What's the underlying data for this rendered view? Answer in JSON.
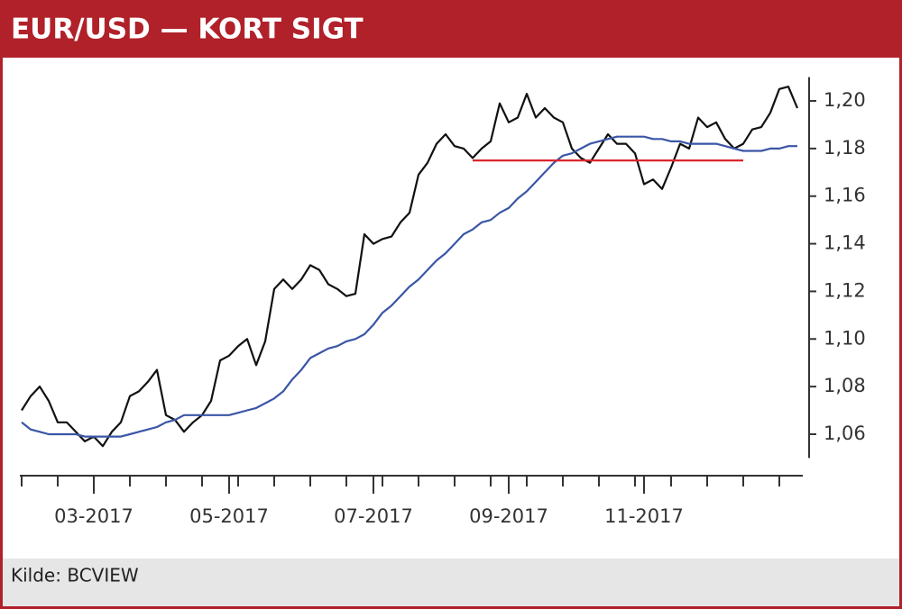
{
  "chart_data": {
    "type": "line",
    "title": "EUR/USD — KORT SIGT",
    "source": "Kilde: BCVIEW",
    "categories": [
      null,
      null,
      null,
      null,
      null,
      null,
      null,
      null,
      "03-2017",
      null,
      null,
      null,
      null,
      null,
      null,
      null,
      null,
      null,
      null,
      null,
      null,
      null,
      null,
      "05-2017",
      null,
      null,
      null,
      null,
      null,
      null,
      null,
      null,
      null,
      null,
      null,
      null,
      null,
      null,
      null,
      "07-2017",
      null,
      null,
      null,
      null,
      null,
      null,
      null,
      null,
      null,
      null,
      null,
      null,
      null,
      null,
      "09-2017",
      null,
      null,
      null,
      null,
      null,
      null,
      null,
      null,
      null,
      null,
      null,
      null,
      null,
      null,
      "11-2017",
      null,
      null,
      null,
      null,
      null,
      null,
      null,
      null,
      null,
      null,
      null,
      null,
      null,
      null,
      null,
      null,
      null
    ],
    "series": [
      {
        "color": "#111111",
        "values": [
          1.07,
          1.076,
          1.08,
          1.074,
          1.065,
          1.065,
          1.061,
          1.057,
          1.059,
          1.055,
          1.061,
          1.065,
          1.076,
          1.078,
          1.082,
          1.087,
          1.068,
          1.066,
          1.061,
          1.065,
          1.068,
          1.074,
          1.091,
          1.093,
          1.097,
          1.1,
          1.089,
          1.099,
          1.121,
          1.125,
          1.121,
          1.125,
          1.131,
          1.129,
          1.123,
          1.121,
          1.118,
          1.119,
          1.144,
          1.14,
          1.142,
          1.143,
          1.149,
          1.153,
          1.169,
          1.174,
          1.182,
          1.186,
          1.181,
          1.18,
          1.176,
          1.18,
          1.183,
          1.199,
          1.191,
          1.193,
          1.203,
          1.193,
          1.197,
          1.193,
          1.191,
          1.18,
          1.176,
          1.174,
          1.18,
          1.186,
          1.182,
          1.182,
          1.178,
          1.165,
          1.167,
          1.163,
          1.172,
          1.182,
          1.18,
          1.193,
          1.189,
          1.191,
          1.184,
          1.18,
          1.182,
          1.188,
          1.189,
          1.195,
          1.205,
          1.206,
          1.197
        ]
      },
      {
        "color": "#3a56a6",
        "values": [
          1.065,
          1.062,
          1.061,
          1.06,
          1.06,
          1.06,
          1.06,
          1.059,
          1.059,
          1.059,
          1.059,
          1.059,
          1.06,
          1.061,
          1.062,
          1.063,
          1.065,
          1.066,
          1.068,
          1.068,
          1.068,
          1.068,
          1.068,
          1.068,
          1.069,
          1.07,
          1.071,
          1.073,
          1.075,
          1.078,
          1.083,
          1.087,
          1.092,
          1.094,
          1.096,
          1.097,
          1.099,
          1.1,
          1.102,
          1.106,
          1.111,
          1.114,
          1.118,
          1.122,
          1.125,
          1.129,
          1.133,
          1.136,
          1.14,
          1.144,
          1.146,
          1.149,
          1.15,
          1.153,
          1.155,
          1.159,
          1.162,
          1.166,
          1.17,
          1.174,
          1.177,
          1.178,
          1.18,
          1.182,
          1.183,
          1.184,
          1.185,
          1.185,
          1.185,
          1.185,
          1.184,
          1.184,
          1.183,
          1.183,
          1.182,
          1.182,
          1.182,
          1.182,
          1.181,
          1.18,
          1.179,
          1.179,
          1.179,
          1.18,
          1.18,
          1.181,
          1.181
        ]
      },
      {
        "color": "#d9262e",
        "values": [
          null,
          null,
          null,
          null,
          null,
          null,
          null,
          null,
          null,
          null,
          null,
          null,
          null,
          null,
          null,
          null,
          null,
          null,
          null,
          null,
          null,
          null,
          null,
          null,
          null,
          null,
          null,
          null,
          null,
          null,
          null,
          null,
          null,
          null,
          null,
          null,
          null,
          null,
          null,
          null,
          null,
          null,
          null,
          null,
          null,
          null,
          null,
          null,
          null,
          null,
          1.175,
          1.175,
          1.175,
          1.175,
          1.175,
          1.175,
          1.175,
          1.175,
          1.175,
          1.175,
          1.175,
          1.175,
          1.175,
          1.175,
          1.175,
          1.175,
          1.175,
          1.175,
          1.175,
          1.175,
          1.175,
          1.175,
          1.175,
          1.175,
          1.175,
          1.175,
          1.175,
          1.175,
          1.175,
          1.175,
          1.175,
          null,
          null,
          null,
          null,
          null,
          null
        ]
      }
    ],
    "ylim": [
      1.05,
      1.21
    ],
    "yticks": [
      {
        "value": 1.06,
        "label": "1,06"
      },
      {
        "value": 1.08,
        "label": "1,08"
      },
      {
        "value": 1.1,
        "label": "1,10"
      },
      {
        "value": 1.12,
        "label": "1,12"
      },
      {
        "value": 1.14,
        "label": "1,14"
      },
      {
        "value": 1.16,
        "label": "1,16"
      },
      {
        "value": 1.18,
        "label": "1,18"
      },
      {
        "value": 1.2,
        "label": "1,20"
      }
    ],
    "y_axis_side": "right",
    "grid": false
  }
}
